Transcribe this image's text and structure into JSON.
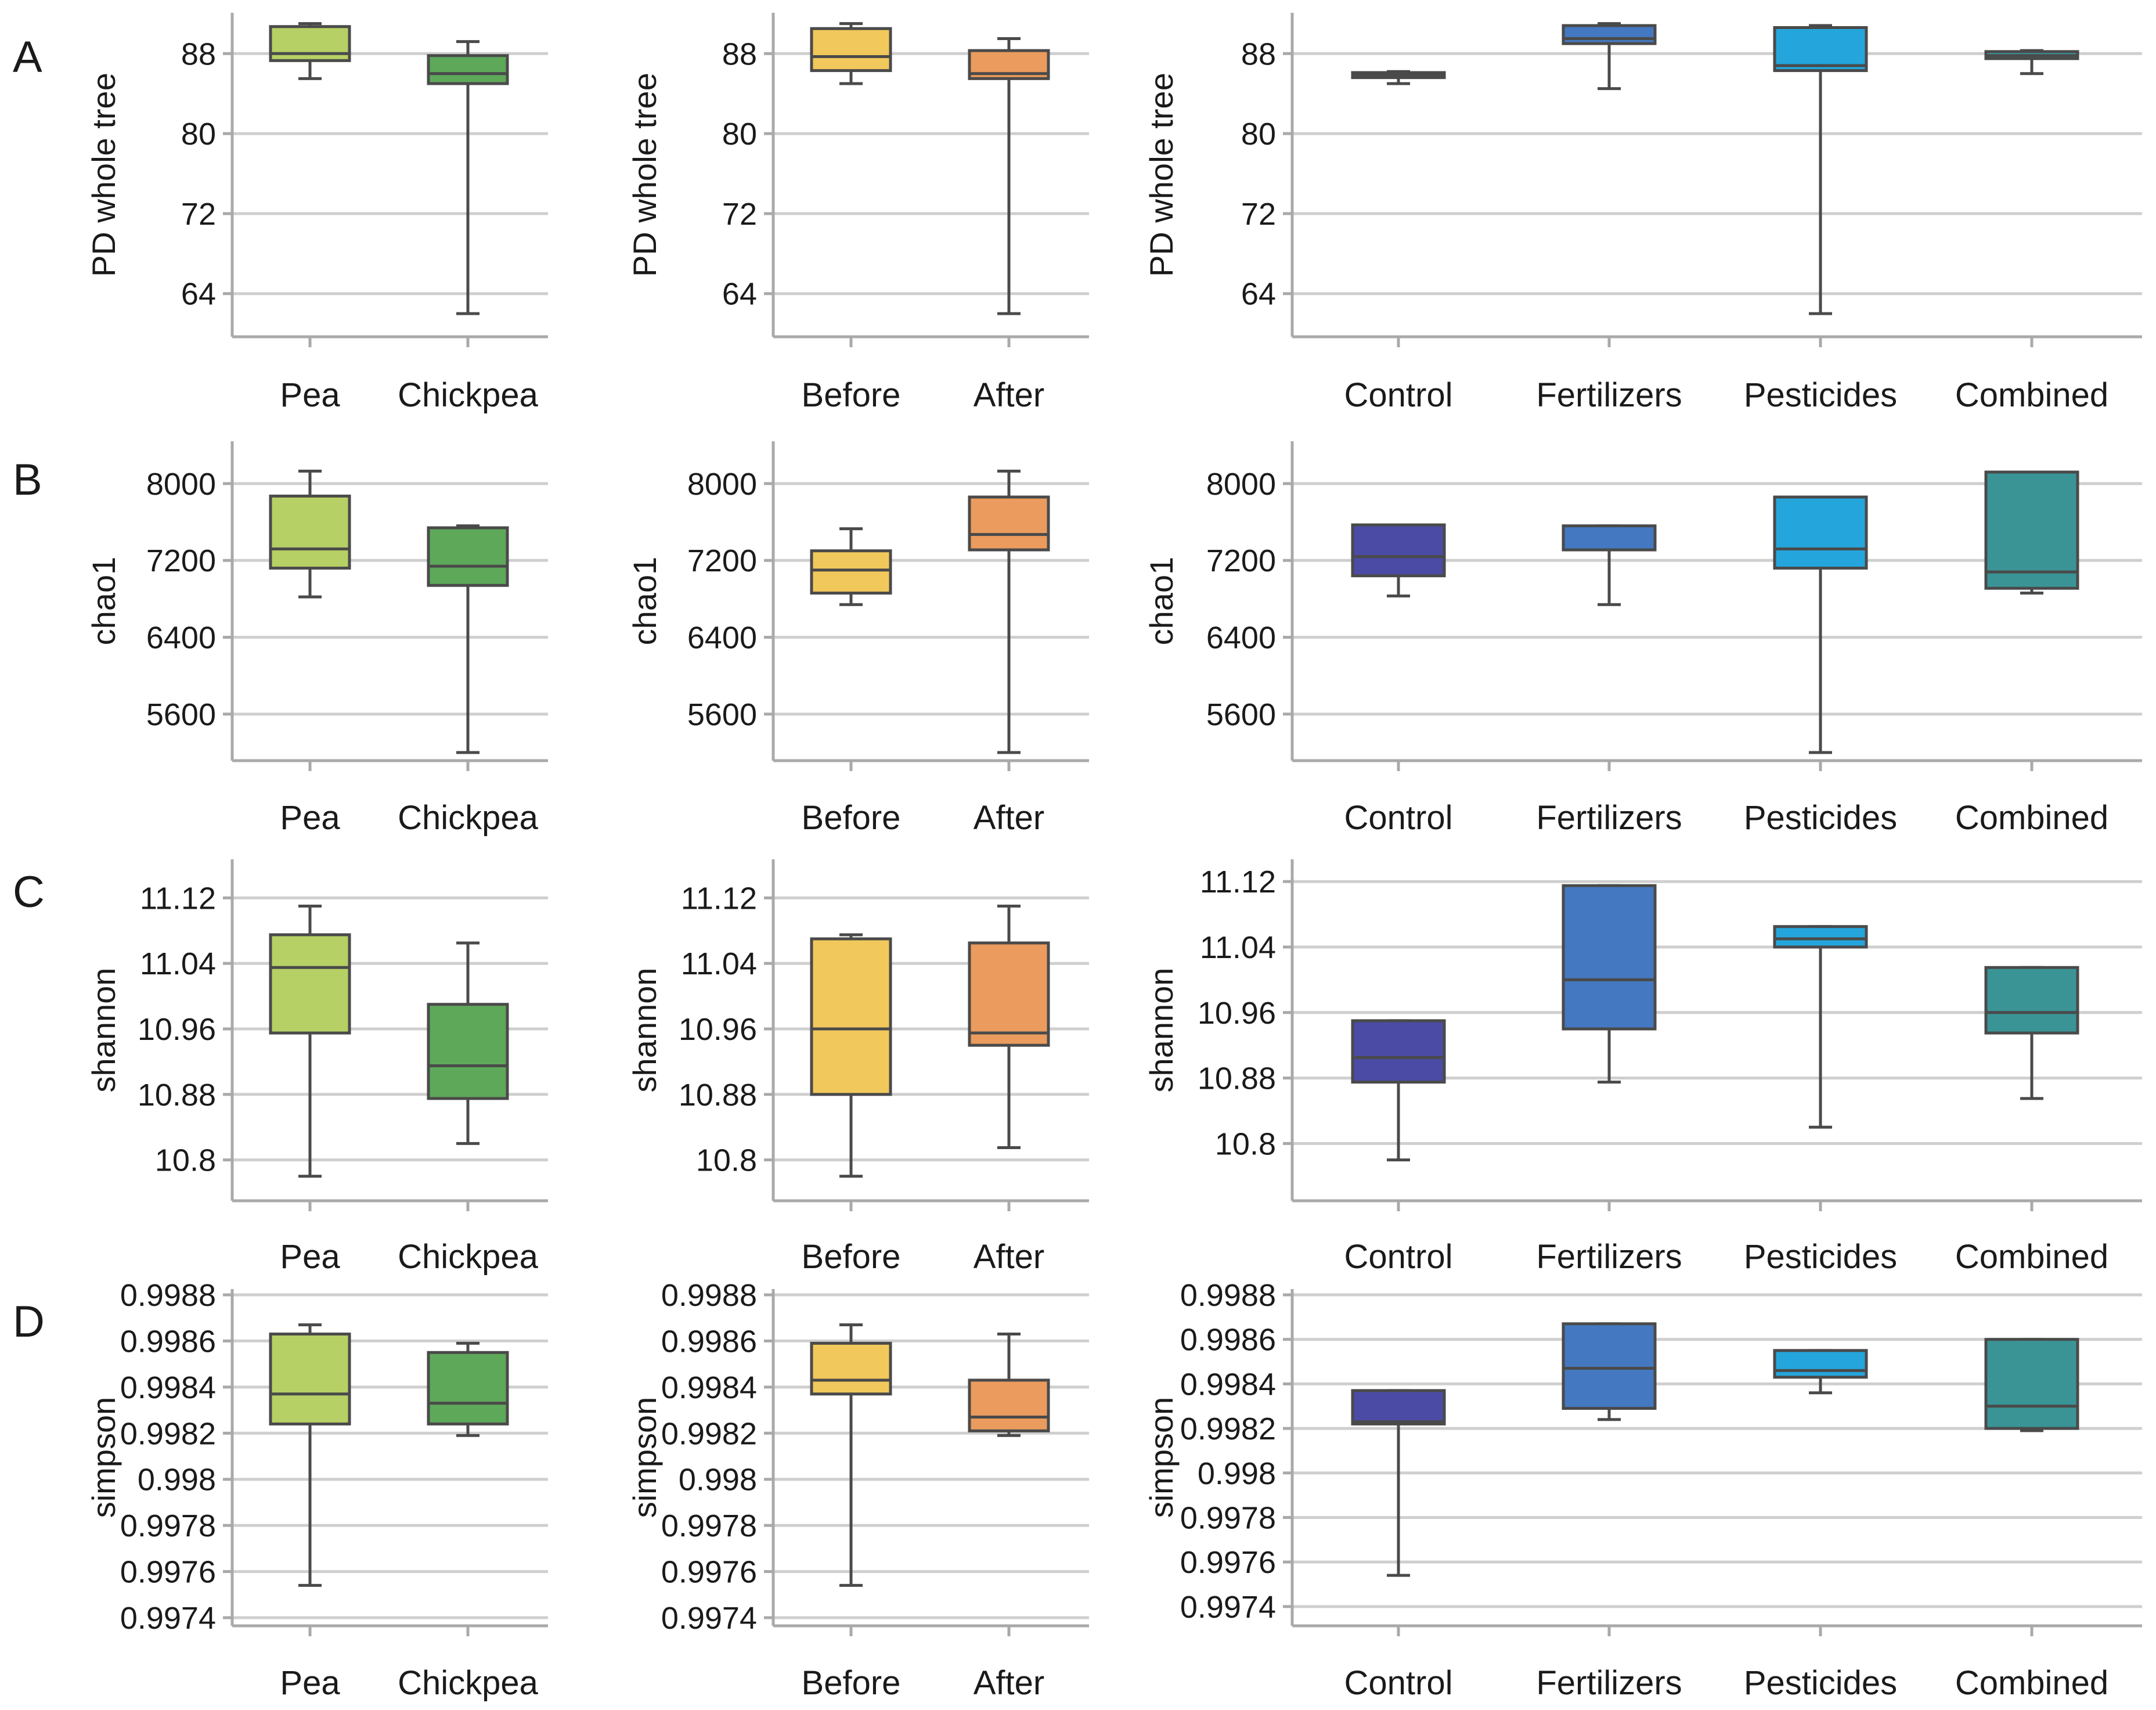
{
  "chart_data": [
    {
      "row": "A",
      "type": "box",
      "ylabel": "PD whole tree",
      "ylim": [
        60.5,
        91.5
      ],
      "yticks": [
        64,
        72,
        80,
        88
      ],
      "ytick_labels": [
        "64",
        "72",
        "80",
        "88"
      ],
      "categories": [
        "Pea",
        "Chickpea"
      ],
      "colors": [
        "#b6d065",
        "#5ea85a"
      ],
      "boxes": [
        {
          "min": 85.5,
          "q1": 87.3,
          "median": 88.0,
          "q3": 90.7,
          "max": 91.0
        },
        {
          "min": 62.0,
          "q1": 85.0,
          "median": 86.0,
          "q3": 87.8,
          "max": 89.2
        }
      ]
    },
    {
      "row": "A",
      "type": "box",
      "ylabel": "PD whole tree",
      "ylim": [
        60.5,
        91.5
      ],
      "yticks": [
        64,
        72,
        80,
        88
      ],
      "ytick_labels": [
        "64",
        "72",
        "80",
        "88"
      ],
      "categories": [
        "Before",
        "After"
      ],
      "colors": [
        "#f1c85b",
        "#ea9b5d"
      ],
      "boxes": [
        {
          "min": 85.0,
          "q1": 86.3,
          "median": 87.7,
          "q3": 90.5,
          "max": 91.0
        },
        {
          "min": 62.0,
          "q1": 85.5,
          "median": 86.0,
          "q3": 88.3,
          "max": 89.5
        }
      ]
    },
    {
      "row": "A",
      "type": "box",
      "ylabel": "PD whole tree",
      "ylim": [
        60.5,
        91.5
      ],
      "yticks": [
        64,
        72,
        80,
        88
      ],
      "ytick_labels": [
        "64",
        "72",
        "80",
        "88"
      ],
      "categories": [
        "Control",
        "Fertilizers",
        "Pesticides",
        "Combined"
      ],
      "colors": [
        "#4b4ba6",
        "#4478c0",
        "#24a6dc",
        "#3a9496"
      ],
      "boxes": [
        {
          "min": 85.0,
          "q1": 85.6,
          "median": 85.9,
          "q3": 86.1,
          "max": 86.2
        },
        {
          "min": 84.5,
          "q1": 89.0,
          "median": 89.5,
          "q3": 90.8,
          "max": 91.0
        },
        {
          "min": 62.0,
          "q1": 86.3,
          "median": 86.8,
          "q3": 90.6,
          "max": 90.8
        },
        {
          "min": 86.0,
          "q1": 87.5,
          "median": 87.8,
          "q3": 88.2,
          "max": 88.3
        }
      ]
    },
    {
      "row": "B",
      "type": "box",
      "ylabel": "chao1",
      "ylim": [
        5200,
        8380
      ],
      "yticks": [
        5600,
        6400,
        7200,
        8000
      ],
      "ytick_labels": [
        "5600",
        "6400",
        "7200",
        "8000"
      ],
      "categories": [
        "Pea",
        "Chickpea"
      ],
      "colors": [
        "#b6d065",
        "#5ea85a"
      ],
      "boxes": [
        {
          "min": 6820,
          "q1": 7120,
          "median": 7320,
          "q3": 7870,
          "max": 8130
        },
        {
          "min": 5200,
          "q1": 6940,
          "median": 7140,
          "q3": 7540,
          "max": 7560
        }
      ]
    },
    {
      "row": "B",
      "type": "box",
      "ylabel": "chao1",
      "ylim": [
        5200,
        8380
      ],
      "yticks": [
        5600,
        6400,
        7200,
        8000
      ],
      "ytick_labels": [
        "5600",
        "6400",
        "7200",
        "8000"
      ],
      "categories": [
        "Before",
        "After"
      ],
      "colors": [
        "#f1c85b",
        "#ea9b5d"
      ],
      "boxes": [
        {
          "min": 6740,
          "q1": 6860,
          "median": 7100,
          "q3": 7300,
          "max": 7530
        },
        {
          "min": 5200,
          "q1": 7310,
          "median": 7470,
          "q3": 7860,
          "max": 8130
        }
      ]
    },
    {
      "row": "B",
      "type": "box",
      "ylabel": "chao1",
      "ylim": [
        5200,
        8380
      ],
      "yticks": [
        5600,
        6400,
        7200,
        8000
      ],
      "ytick_labels": [
        "5600",
        "6400",
        "7200",
        "8000"
      ],
      "categories": [
        "Control",
        "Fertilizers",
        "Pesticides",
        "Combined"
      ],
      "colors": [
        "#4b4ba6",
        "#4478c0",
        "#24a6dc",
        "#3a9496"
      ],
      "boxes": [
        {
          "min": 6830,
          "q1": 7040,
          "median": 7240,
          "q3": 7570,
          "max": 7570
        },
        {
          "min": 6740,
          "q1": 7310,
          "median": 7310,
          "q3": 7560,
          "max": 7560
        },
        {
          "min": 5200,
          "q1": 7120,
          "median": 7320,
          "q3": 7860,
          "max": 7860
        },
        {
          "min": 6860,
          "q1": 6910,
          "median": 7080,
          "q3": 8120,
          "max": 8120
        }
      ]
    },
    {
      "row": "C",
      "type": "box",
      "ylabel": "shannon",
      "ylim": [
        10.76,
        11.16
      ],
      "yticks": [
        10.8,
        10.88,
        10.96,
        11.04,
        11.12
      ],
      "ytick_labels": [
        "10.8",
        "10.88",
        "10.96",
        "11.04",
        "11.12"
      ],
      "categories": [
        "Pea",
        "Chickpea"
      ],
      "colors": [
        "#b6d065",
        "#5ea85a"
      ],
      "boxes": [
        {
          "min": 10.78,
          "q1": 10.955,
          "median": 11.035,
          "q3": 11.075,
          "max": 11.11
        },
        {
          "min": 10.82,
          "q1": 10.875,
          "median": 10.915,
          "q3": 10.99,
          "max": 11.065
        }
      ]
    },
    {
      "row": "C",
      "type": "box",
      "ylabel": "shannon",
      "ylim": [
        10.76,
        11.16
      ],
      "yticks": [
        10.8,
        10.88,
        10.96,
        11.04,
        11.12
      ],
      "ytick_labels": [
        "10.8",
        "10.88",
        "10.96",
        "11.04",
        "11.12"
      ],
      "categories": [
        "Before",
        "After"
      ],
      "colors": [
        "#f1c85b",
        "#ea9b5d"
      ],
      "boxes": [
        {
          "min": 10.78,
          "q1": 10.88,
          "median": 10.96,
          "q3": 11.07,
          "max": 11.075
        },
        {
          "min": 10.815,
          "q1": 10.94,
          "median": 10.955,
          "q3": 11.065,
          "max": 11.11
        }
      ]
    },
    {
      "row": "C",
      "type": "box",
      "ylabel": "shannon",
      "ylim": [
        10.74,
        11.14
      ],
      "yticks": [
        10.8,
        10.88,
        10.96,
        11.04,
        11.12
      ],
      "ytick_labels": [
        "10.8",
        "10.88",
        "10.96",
        "11.04",
        "11.12"
      ],
      "categories": [
        "Control",
        "Fertilizers",
        "Pesticides",
        "Combined"
      ],
      "colors": [
        "#4b4ba6",
        "#4478c0",
        "#24a6dc",
        "#3a9496"
      ],
      "boxes": [
        {
          "min": 10.78,
          "q1": 10.875,
          "median": 10.905,
          "q3": 10.95,
          "max": 10.95
        },
        {
          "min": 10.875,
          "q1": 10.94,
          "median": 11.0,
          "q3": 11.115,
          "max": 11.115
        },
        {
          "min": 10.82,
          "q1": 11.04,
          "median": 11.05,
          "q3": 11.065,
          "max": 11.065
        },
        {
          "min": 10.855,
          "q1": 10.935,
          "median": 10.96,
          "q3": 11.015,
          "max": 11.015
        }
      ]
    },
    {
      "row": "D",
      "type": "box",
      "ylabel": "simpson",
      "ylim": [
        0.9974,
        0.9988
      ],
      "yticks": [
        0.9974,
        0.9976,
        0.9978,
        0.998,
        0.9982,
        0.9984,
        0.9986,
        0.9988
      ],
      "ytick_labels": [
        "0.9974",
        "0.9976",
        "0.9978",
        "0.998",
        "0.9982",
        "0.9984",
        "0.9986",
        "0.9988"
      ],
      "categories": [
        "Pea",
        "Chickpea"
      ],
      "colors": [
        "#b6d065",
        "#5ea85a"
      ],
      "boxes": [
        {
          "min": 0.99754,
          "q1": 0.99824,
          "median": 0.99837,
          "q3": 0.99863,
          "max": 0.99867
        },
        {
          "min": 0.99819,
          "q1": 0.99824,
          "median": 0.99833,
          "q3": 0.99855,
          "max": 0.99859
        }
      ]
    },
    {
      "row": "D",
      "type": "box",
      "ylabel": "simpson",
      "ylim": [
        0.9974,
        0.9988
      ],
      "yticks": [
        0.9974,
        0.9976,
        0.9978,
        0.998,
        0.9982,
        0.9984,
        0.9986,
        0.9988
      ],
      "ytick_labels": [
        "0.9974",
        "0.9976",
        "0.9978",
        "0.998",
        "0.9982",
        "0.9984",
        "0.9986",
        "0.9988"
      ],
      "categories": [
        "Before",
        "After"
      ],
      "colors": [
        "#f1c85b",
        "#ea9b5d"
      ],
      "boxes": [
        {
          "min": 0.99754,
          "q1": 0.99837,
          "median": 0.99843,
          "q3": 0.99859,
          "max": 0.99867
        },
        {
          "min": 0.99819,
          "q1": 0.99821,
          "median": 0.99827,
          "q3": 0.99843,
          "max": 0.99863
        }
      ]
    },
    {
      "row": "D",
      "type": "box",
      "ylabel": "simpson",
      "ylim": [
        0.99735,
        0.9988
      ],
      "yticks": [
        0.9974,
        0.9976,
        0.9978,
        0.998,
        0.9982,
        0.9984,
        0.9986,
        0.9988
      ],
      "ytick_labels": [
        "0.9974",
        "0.9976",
        "0.9978",
        "0.998",
        "0.9982",
        "0.9984",
        "0.9986",
        "0.9988"
      ],
      "categories": [
        "Control",
        "Fertilizers",
        "Pesticides",
        "Combined"
      ],
      "colors": [
        "#4b4ba6",
        "#4478c0",
        "#24a6dc",
        "#3a9496"
      ],
      "boxes": [
        {
          "min": 0.99754,
          "q1": 0.99822,
          "median": 0.99823,
          "q3": 0.99837,
          "max": 0.99837
        },
        {
          "min": 0.99824,
          "q1": 0.99829,
          "median": 0.99847,
          "q3": 0.99867,
          "max": 0.99867
        },
        {
          "min": 0.99836,
          "q1": 0.99843,
          "median": 0.99846,
          "q3": 0.99855,
          "max": 0.99855
        },
        {
          "min": 0.99819,
          "q1": 0.9982,
          "median": 0.9983,
          "q3": 0.9986,
          "max": 0.9986
        }
      ]
    }
  ],
  "row_labels": [
    "A",
    "B",
    "C",
    "D"
  ]
}
